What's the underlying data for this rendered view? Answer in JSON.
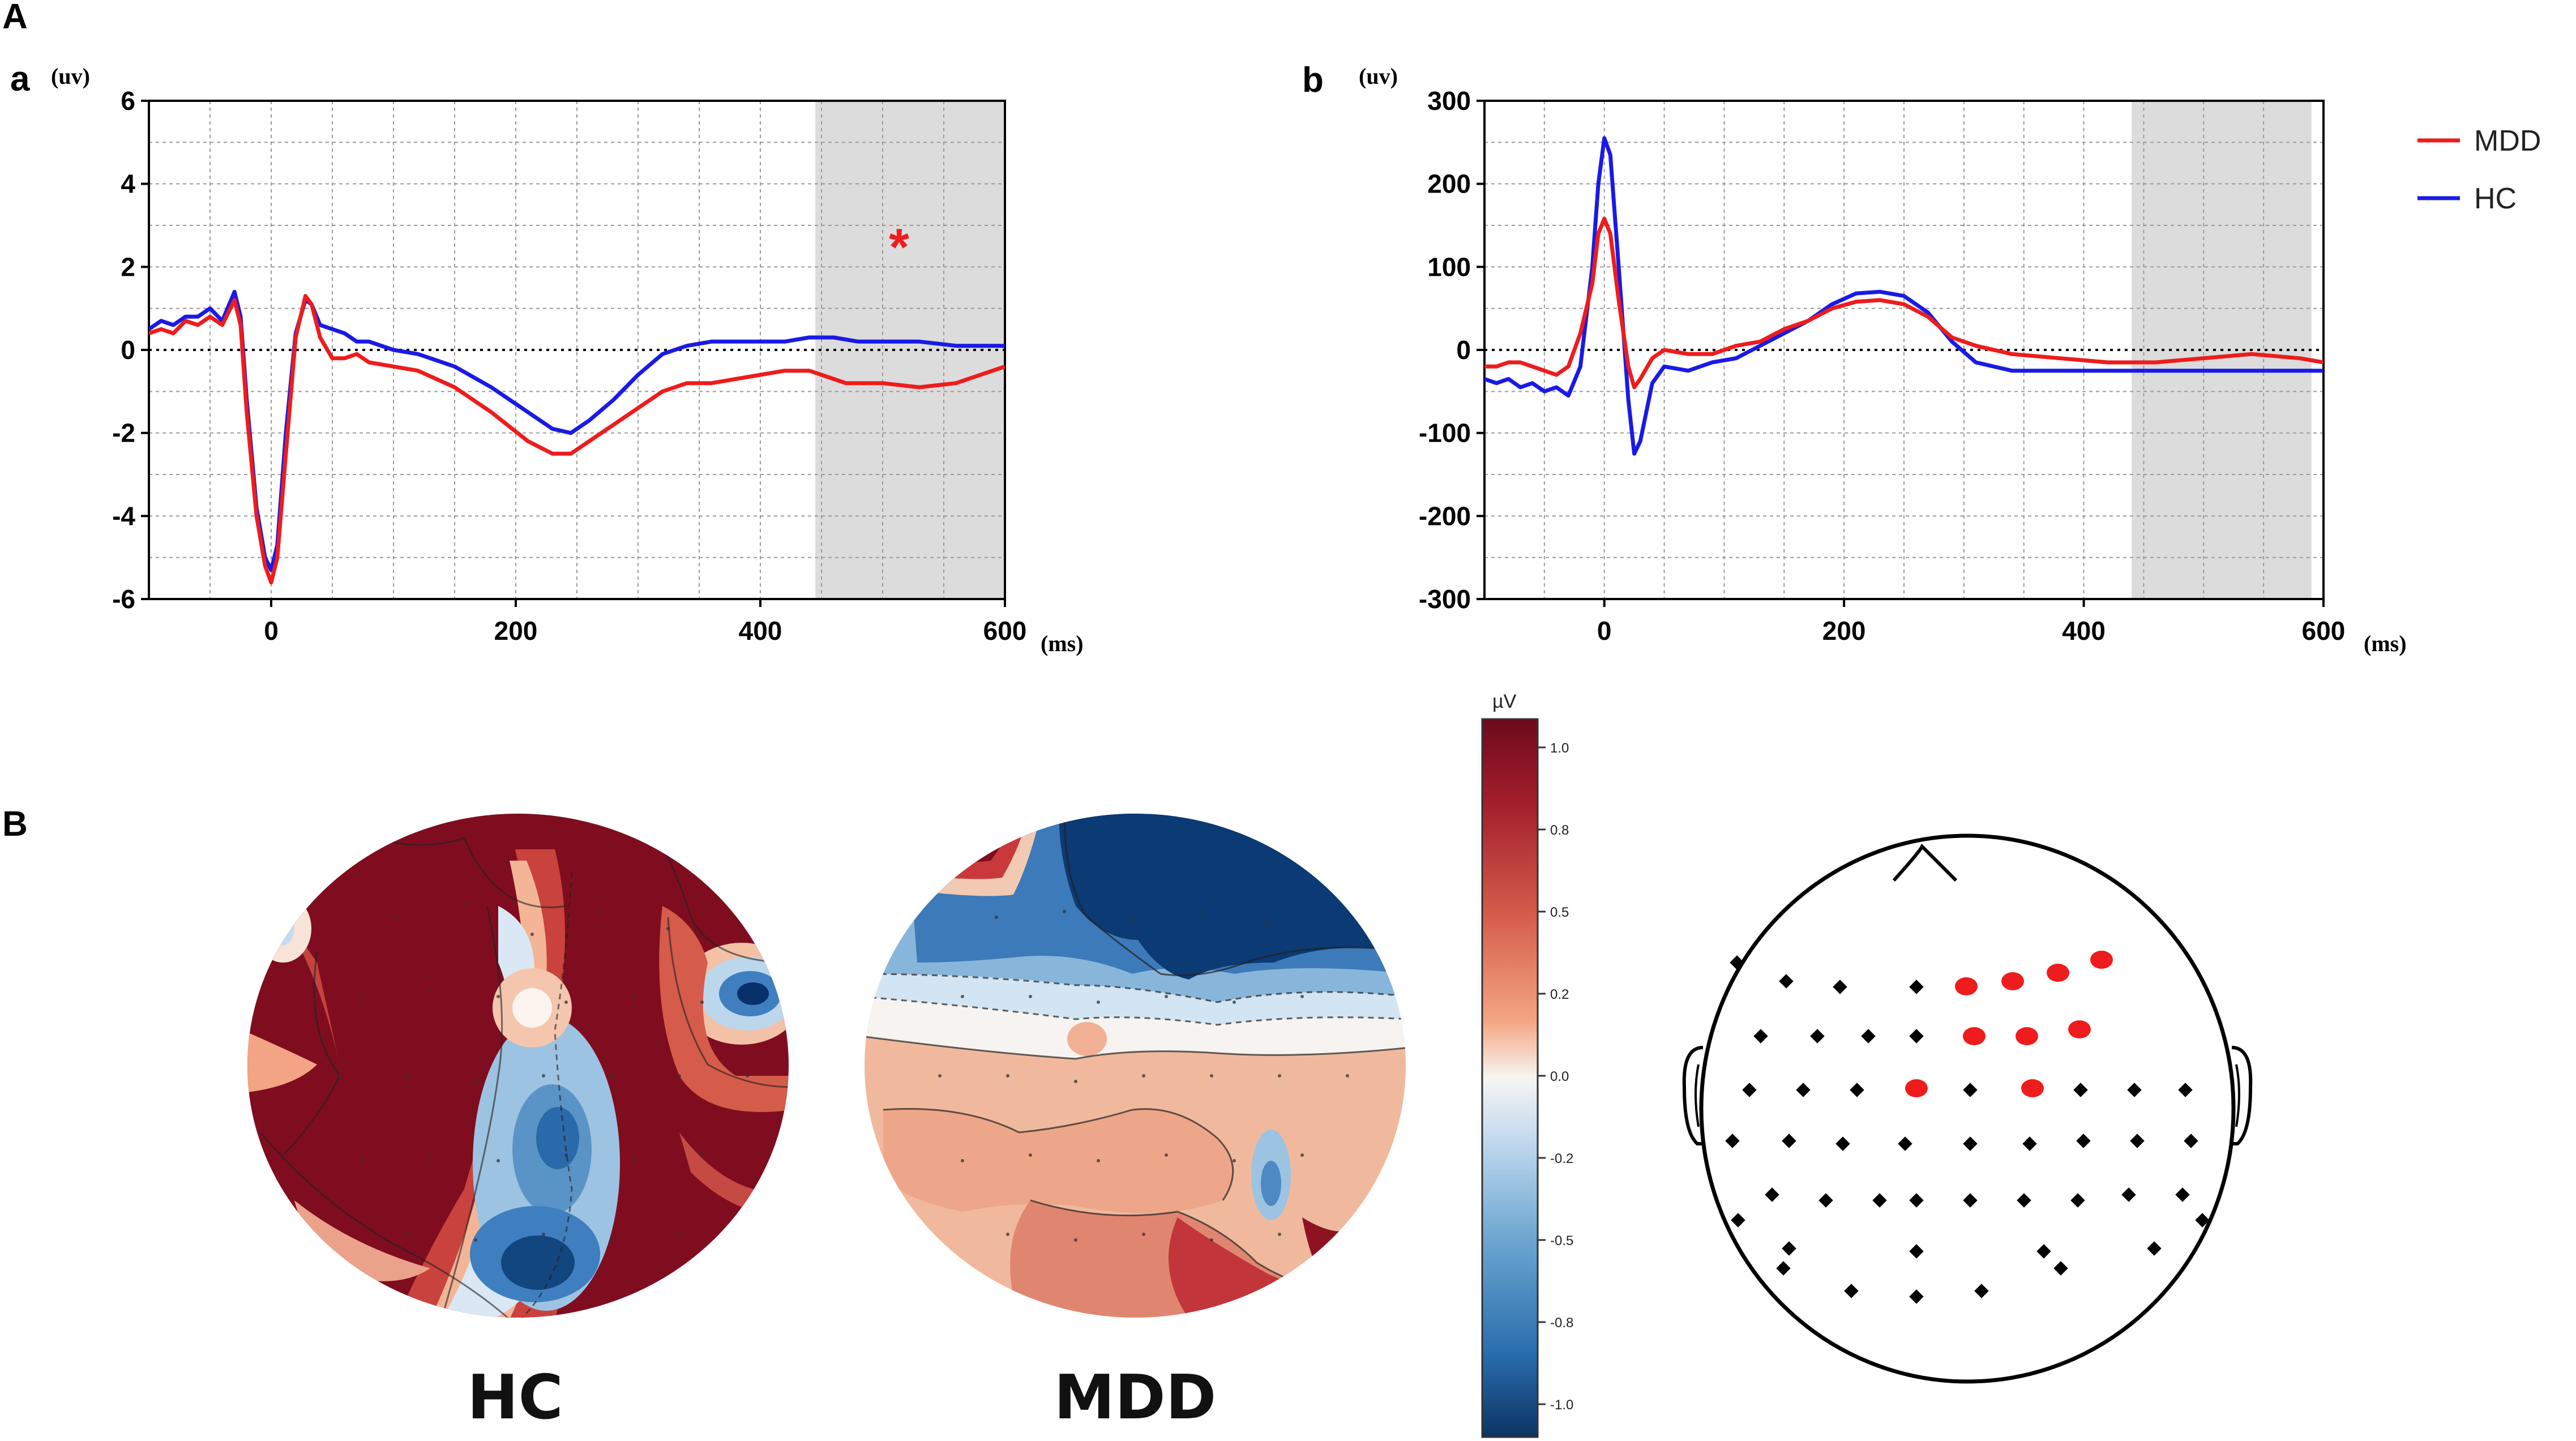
{
  "figure": {
    "label_A": "A",
    "label_B": "B",
    "colors": {
      "mdd": "#ee1c1c",
      "hc": "#1a1ae6",
      "shade": "#dcdcdc",
      "sig": "#ee1c1c"
    }
  },
  "chart_data": [
    {
      "id": "a",
      "panel_label": "a",
      "type": "line",
      "ylabel": "(uv)",
      "xlabel": "(ms)",
      "xlim": [
        -100,
        600
      ],
      "ylim": [
        -6,
        6
      ],
      "xticks": [
        0,
        200,
        400,
        600
      ],
      "yticks": [
        -6,
        -4,
        -2,
        0,
        2,
        4,
        6
      ],
      "grid": true,
      "shaded_window_ms": [
        445,
        600
      ],
      "significance_marker": "*",
      "significance_at": {
        "x": 510,
        "y": 2.5
      },
      "series": [
        {
          "name": "MDD",
          "points": [
            [
              -100,
              0.4
            ],
            [
              -90,
              0.5
            ],
            [
              -80,
              0.4
            ],
            [
              -70,
              0.7
            ],
            [
              -60,
              0.6
            ],
            [
              -50,
              0.8
            ],
            [
              -40,
              0.6
            ],
            [
              -30,
              1.2
            ],
            [
              -25,
              0.6
            ],
            [
              -20,
              -1.5
            ],
            [
              -12,
              -4.0
            ],
            [
              -5,
              -5.2
            ],
            [
              0,
              -5.6
            ],
            [
              5,
              -5.0
            ],
            [
              12,
              -2.5
            ],
            [
              20,
              0.3
            ],
            [
              28,
              1.3
            ],
            [
              33,
              1.1
            ],
            [
              40,
              0.3
            ],
            [
              50,
              -0.2
            ],
            [
              60,
              -0.2
            ],
            [
              70,
              -0.1
            ],
            [
              80,
              -0.3
            ],
            [
              100,
              -0.4
            ],
            [
              120,
              -0.5
            ],
            [
              150,
              -0.9
            ],
            [
              180,
              -1.5
            ],
            [
              210,
              -2.2
            ],
            [
              230,
              -2.5
            ],
            [
              245,
              -2.5
            ],
            [
              260,
              -2.2
            ],
            [
              280,
              -1.8
            ],
            [
              300,
              -1.4
            ],
            [
              320,
              -1.0
            ],
            [
              340,
              -0.8
            ],
            [
              360,
              -0.8
            ],
            [
              380,
              -0.7
            ],
            [
              400,
              -0.6
            ],
            [
              420,
              -0.5
            ],
            [
              440,
              -0.5
            ],
            [
              450,
              -0.6
            ],
            [
              470,
              -0.8
            ],
            [
              500,
              -0.8
            ],
            [
              530,
              -0.9
            ],
            [
              560,
              -0.8
            ],
            [
              600,
              -0.4
            ]
          ]
        },
        {
          "name": "HC",
          "points": [
            [
              -100,
              0.5
            ],
            [
              -90,
              0.7
            ],
            [
              -80,
              0.6
            ],
            [
              -70,
              0.8
            ],
            [
              -60,
              0.8
            ],
            [
              -50,
              1.0
            ],
            [
              -40,
              0.7
            ],
            [
              -30,
              1.4
            ],
            [
              -25,
              0.8
            ],
            [
              -20,
              -1.2
            ],
            [
              -12,
              -3.8
            ],
            [
              -5,
              -5.0
            ],
            [
              0,
              -5.3
            ],
            [
              5,
              -4.7
            ],
            [
              12,
              -2.0
            ],
            [
              20,
              0.4
            ],
            [
              28,
              1.2
            ],
            [
              33,
              1.1
            ],
            [
              40,
              0.6
            ],
            [
              50,
              0.5
            ],
            [
              60,
              0.4
            ],
            [
              70,
              0.2
            ],
            [
              80,
              0.2
            ],
            [
              100,
              0.0
            ],
            [
              120,
              -0.1
            ],
            [
              150,
              -0.4
            ],
            [
              180,
              -0.9
            ],
            [
              210,
              -1.5
            ],
            [
              230,
              -1.9
            ],
            [
              245,
              -2.0
            ],
            [
              260,
              -1.7
            ],
            [
              280,
              -1.2
            ],
            [
              300,
              -0.6
            ],
            [
              320,
              -0.1
            ],
            [
              340,
              0.1
            ],
            [
              360,
              0.2
            ],
            [
              380,
              0.2
            ],
            [
              400,
              0.2
            ],
            [
              420,
              0.2
            ],
            [
              440,
              0.3
            ],
            [
              460,
              0.3
            ],
            [
              480,
              0.2
            ],
            [
              500,
              0.2
            ],
            [
              530,
              0.2
            ],
            [
              560,
              0.1
            ],
            [
              600,
              0.1
            ]
          ]
        }
      ]
    },
    {
      "id": "b",
      "panel_label": "b",
      "type": "line",
      "ylabel": "(uv)",
      "xlabel": "(ms)",
      "xlim": [
        -100,
        600
      ],
      "ylim": [
        -300,
        300
      ],
      "xticks": [
        0,
        200,
        400,
        600
      ],
      "yticks": [
        -300,
        -200,
        -100,
        0,
        100,
        200,
        300
      ],
      "grid": true,
      "shaded_window_ms": [
        440,
        590
      ],
      "series": [
        {
          "name": "MDD",
          "points": [
            [
              -100,
              -20
            ],
            [
              -90,
              -20
            ],
            [
              -80,
              -15
            ],
            [
              -70,
              -15
            ],
            [
              -60,
              -20
            ],
            [
              -50,
              -25
            ],
            [
              -40,
              -30
            ],
            [
              -30,
              -20
            ],
            [
              -20,
              20
            ],
            [
              -10,
              80
            ],
            [
              -5,
              140
            ],
            [
              0,
              158
            ],
            [
              5,
              140
            ],
            [
              12,
              60
            ],
            [
              20,
              -20
            ],
            [
              25,
              -45
            ],
            [
              30,
              -35
            ],
            [
              40,
              -10
            ],
            [
              50,
              0
            ],
            [
              70,
              -5
            ],
            [
              90,
              -5
            ],
            [
              110,
              5
            ],
            [
              130,
              10
            ],
            [
              150,
              25
            ],
            [
              170,
              35
            ],
            [
              190,
              50
            ],
            [
              210,
              58
            ],
            [
              230,
              60
            ],
            [
              250,
              55
            ],
            [
              270,
              40
            ],
            [
              290,
              15
            ],
            [
              310,
              5
            ],
            [
              340,
              -5
            ],
            [
              380,
              -10
            ],
            [
              420,
              -15
            ],
            [
              460,
              -15
            ],
            [
              500,
              -10
            ],
            [
              540,
              -5
            ],
            [
              580,
              -10
            ],
            [
              600,
              -15
            ]
          ]
        },
        {
          "name": "HC",
          "points": [
            [
              -100,
              -35
            ],
            [
              -90,
              -40
            ],
            [
              -80,
              -35
            ],
            [
              -70,
              -45
            ],
            [
              -60,
              -40
            ],
            [
              -50,
              -50
            ],
            [
              -40,
              -45
            ],
            [
              -30,
              -55
            ],
            [
              -20,
              -20
            ],
            [
              -10,
              100
            ],
            [
              -5,
              200
            ],
            [
              0,
              255
            ],
            [
              5,
              235
            ],
            [
              12,
              100
            ],
            [
              20,
              -60
            ],
            [
              25,
              -125
            ],
            [
              30,
              -110
            ],
            [
              40,
              -40
            ],
            [
              50,
              -20
            ],
            [
              70,
              -25
            ],
            [
              90,
              -15
            ],
            [
              110,
              -10
            ],
            [
              130,
              5
            ],
            [
              150,
              20
            ],
            [
              170,
              35
            ],
            [
              190,
              55
            ],
            [
              210,
              68
            ],
            [
              230,
              70
            ],
            [
              250,
              65
            ],
            [
              270,
              45
            ],
            [
              290,
              10
            ],
            [
              310,
              -15
            ],
            [
              340,
              -25
            ],
            [
              380,
              -25
            ],
            [
              420,
              -25
            ],
            [
              460,
              -25
            ],
            [
              500,
              -25
            ],
            [
              540,
              -25
            ],
            [
              580,
              -25
            ],
            [
              600,
              -25
            ]
          ]
        }
      ]
    }
  ],
  "legend": [
    {
      "label": "MDD",
      "color": "#ee1c1c"
    },
    {
      "label": "HC",
      "color": "#1a1ae6"
    }
  ],
  "topomaps": [
    {
      "title": "HC"
    },
    {
      "title": "MDD"
    }
  ],
  "colorbar": {
    "unit": "µV",
    "ticks": [
      "1.0",
      "0.8",
      "0.5",
      "0.2",
      "0.0",
      "-0.2",
      "-0.5",
      "-0.8",
      "-1.0"
    ],
    "top_color": "#7a0a1e",
    "bottom_color": "#0b3a74"
  },
  "electrode_map": {
    "highlighted_color": "#ee1c1c",
    "highlighted_count": 9,
    "normal_color": "#000000"
  }
}
